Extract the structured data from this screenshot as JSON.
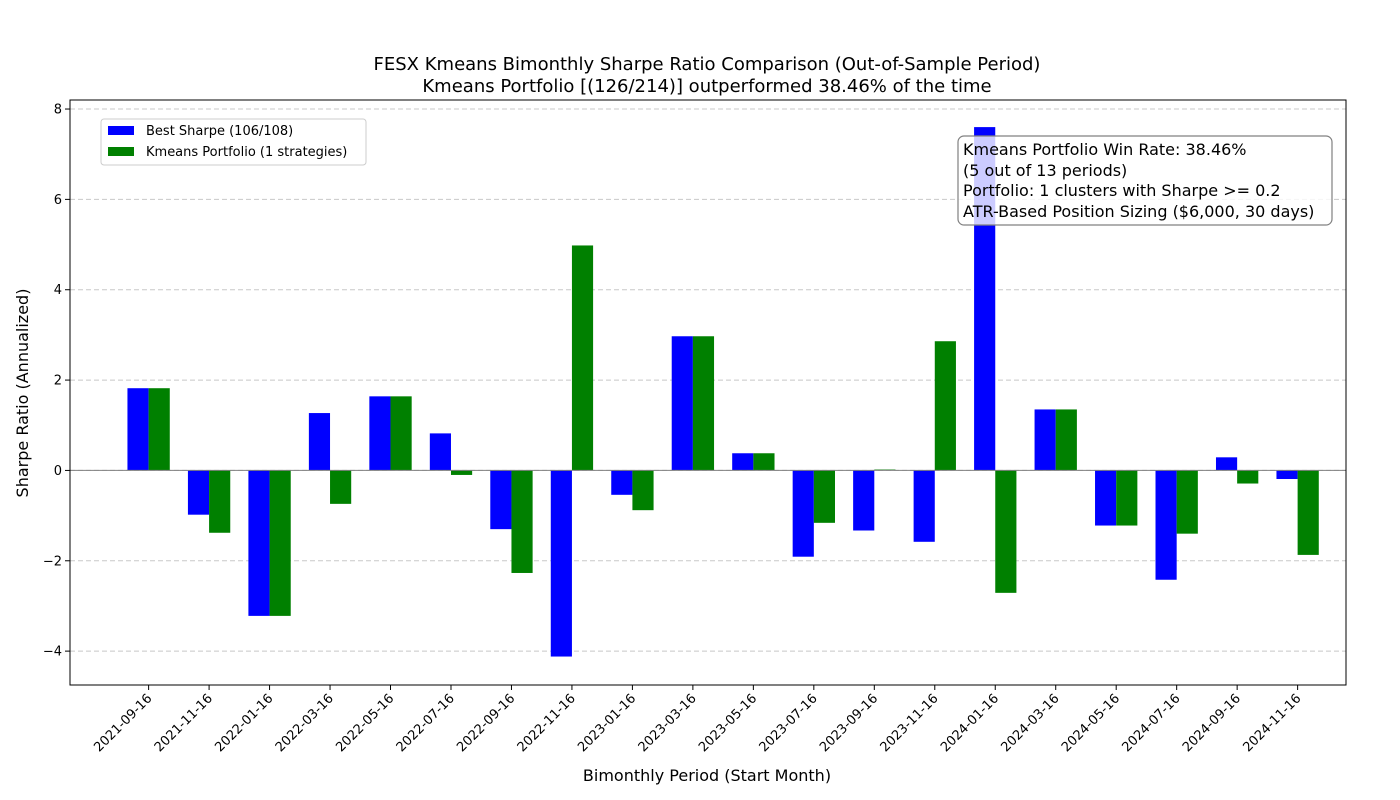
{
  "chart_data": {
    "type": "bar",
    "title": "FESX Kmeans Bimonthly Sharpe Ratio Comparison (Out-of-Sample Period)",
    "subtitle": "Kmeans Portfolio [(126/214)] outperformed 38.46% of the time",
    "xlabel": "Bimonthly Period (Start Month)",
    "ylabel": "Sharpe Ratio (Annualized)",
    "ylim": [
      -4.75,
      8.2
    ],
    "yticks": [
      -4,
      -2,
      0,
      2,
      4,
      6,
      8
    ],
    "ytick_labels": [
      "−4",
      "−2",
      "0",
      "2",
      "4",
      "6",
      "8"
    ],
    "grid": true,
    "legend_position": "top-left",
    "categories": [
      "2021-09-16",
      "2021-11-16",
      "2022-01-16",
      "2022-03-16",
      "2022-05-16",
      "2022-07-16",
      "2022-09-16",
      "2022-11-16",
      "2023-01-16",
      "2023-03-16",
      "2023-05-16",
      "2023-07-16",
      "2023-09-16",
      "2023-11-16",
      "2024-01-16",
      "2024-03-16",
      "2024-05-16",
      "2024-07-16",
      "2024-09-16",
      "2024-11-16"
    ],
    "series": [
      {
        "name": "Best Sharpe (106/108)",
        "color": "#0000ff",
        "values": [
          1.82,
          -0.98,
          -3.22,
          1.27,
          1.64,
          0.82,
          -1.3,
          -4.12,
          -0.54,
          2.97,
          0.38,
          -1.91,
          -1.33,
          -1.58,
          7.6,
          1.35,
          -1.22,
          -2.42,
          0.29,
          -0.19
        ]
      },
      {
        "name": "Kmeans Portfolio (1 strategies)",
        "color": "#008000",
        "values": [
          1.82,
          -1.38,
          -3.22,
          -0.74,
          1.64,
          -0.1,
          -2.27,
          4.98,
          -0.88,
          2.97,
          0.38,
          -1.16,
          0.02,
          2.86,
          -2.71,
          1.35,
          -1.22,
          -1.4,
          -0.29,
          -1.87
        ]
      }
    ],
    "annotation": [
      "Kmeans Portfolio Win Rate: 38.46%",
      "(5 out of 13 periods)",
      "Portfolio: 1 clusters with Sharpe >= 0.2",
      "ATR-Based Position Sizing ($6,000, 30 days)"
    ]
  }
}
